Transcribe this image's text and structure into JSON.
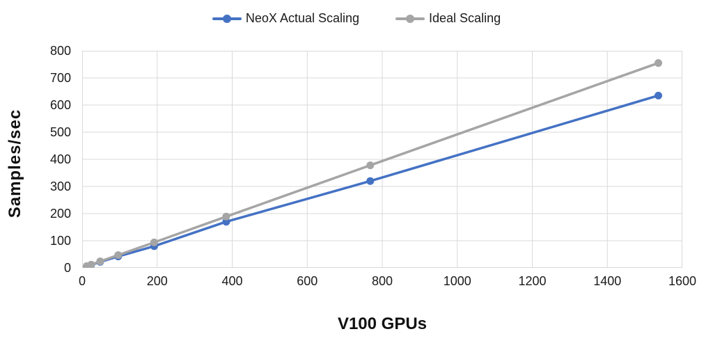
{
  "chart_data": {
    "type": "line",
    "x": [
      12,
      24,
      48,
      96,
      192,
      384,
      768,
      1536
    ],
    "series": [
      {
        "name": "NeoX Actual Scaling",
        "color": "#4472C4",
        "values": [
          6,
          11,
          22,
          42,
          80,
          170,
          320,
          635
        ]
      },
      {
        "name": "Ideal Scaling",
        "color": "#A5A5A5",
        "values": [
          6,
          12,
          24,
          47,
          94,
          189,
          378,
          755
        ]
      }
    ],
    "title": "",
    "xlabel": "V100 GPUs",
    "ylabel": "Samples/sec",
    "xlim": [
      0,
      1600
    ],
    "ylim": [
      0,
      800
    ],
    "x_ticks": [
      0,
      200,
      400,
      600,
      800,
      1000,
      1200,
      1400,
      1600
    ],
    "y_ticks": [
      0,
      100,
      200,
      300,
      400,
      500,
      600,
      700,
      800
    ],
    "grid": true,
    "grid_color": "#D9D9D9",
    "legend_position": "top-center",
    "tick_label_color": "#1a1a1a",
    "axis_title_color": "#111111"
  }
}
